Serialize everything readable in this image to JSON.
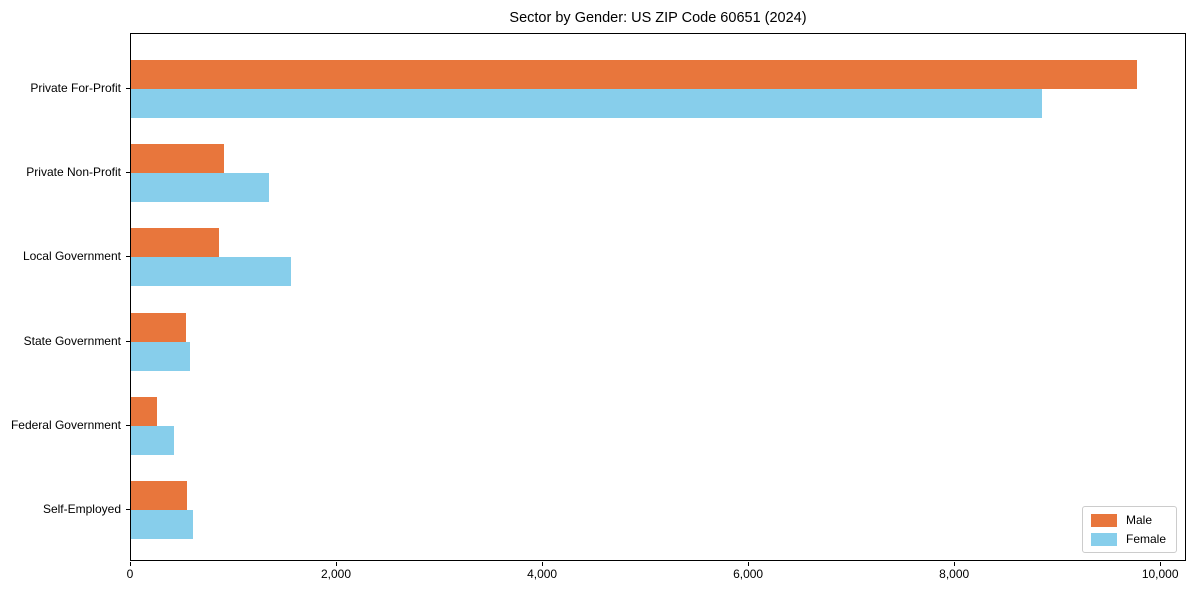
{
  "chart_data": {
    "type": "bar",
    "orientation": "horizontal",
    "title": "Sector by Gender: US ZIP Code 60651 (2024)",
    "categories": [
      "Private For-Profit",
      "Private Non-Profit",
      "Local Government",
      "State Government",
      "Federal Government",
      "Self-Employed"
    ],
    "series": [
      {
        "name": "Male",
        "color": "#e8763c",
        "values": [
          9760,
          900,
          850,
          535,
          255,
          545
        ]
      },
      {
        "name": "Female",
        "color": "#87ceeb",
        "values": [
          8840,
          1340,
          1550,
          570,
          420,
          600
        ]
      }
    ],
    "xlabel": "",
    "ylabel": "",
    "xlim": [
      0,
      10250
    ],
    "x_ticks": [
      {
        "value": 0,
        "label": "0"
      },
      {
        "value": 2000,
        "label": "2,000"
      },
      {
        "value": 4000,
        "label": "4,000"
      },
      {
        "value": 6000,
        "label": "6,000"
      },
      {
        "value": 8000,
        "label": "8,000"
      },
      {
        "value": 10000,
        "label": "10,000"
      }
    ],
    "grid": false,
    "legend_position": "lower right"
  },
  "colors": {
    "male": "#e8763c",
    "female": "#87ceeb",
    "axis": "#000000",
    "legend_border": "#cccccc"
  }
}
